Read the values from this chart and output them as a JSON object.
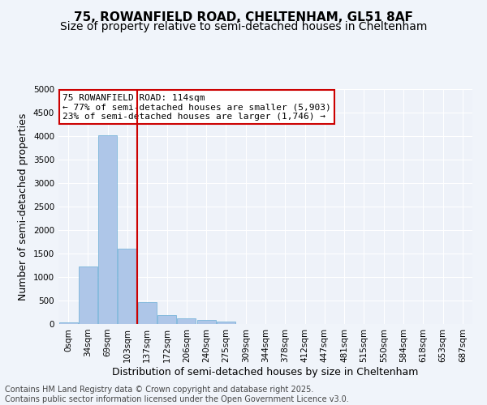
{
  "title_line1": "75, ROWANFIELD ROAD, CHELTENHAM, GL51 8AF",
  "title_line2": "Size of property relative to semi-detached houses in Cheltenham",
  "xlabel": "Distribution of semi-detached houses by size in Cheltenham",
  "ylabel": "Number of semi-detached properties",
  "annotation_title": "75 ROWANFIELD ROAD: 114sqm",
  "annotation_line1": "← 77% of semi-detached houses are smaller (5,903)",
  "annotation_line2": "23% of semi-detached houses are larger (1,746) →",
  "footer_line1": "Contains HM Land Registry data © Crown copyright and database right 2025.",
  "footer_line2": "Contains public sector information licensed under the Open Government Licence v3.0.",
  "bin_labels": [
    "0sqm",
    "34sqm",
    "69sqm",
    "103sqm",
    "137sqm",
    "172sqm",
    "206sqm",
    "240sqm",
    "275sqm",
    "309sqm",
    "344sqm",
    "378sqm",
    "412sqm",
    "447sqm",
    "481sqm",
    "515sqm",
    "550sqm",
    "584sqm",
    "618sqm",
    "653sqm",
    "687sqm"
  ],
  "bar_values": [
    30,
    1220,
    4020,
    1600,
    460,
    195,
    120,
    80,
    50,
    0,
    0,
    0,
    0,
    0,
    0,
    0,
    0,
    0,
    0,
    0,
    0
  ],
  "bar_color": "#aec6e8",
  "bar_edge_color": "#6aaed6",
  "property_line_color": "#cc0000",
  "property_line_x": 3.5,
  "ylim": [
    0,
    5000
  ],
  "yticks": [
    0,
    500,
    1000,
    1500,
    2000,
    2500,
    3000,
    3500,
    4000,
    4500,
    5000
  ],
  "background_color": "#f0f4fa",
  "plot_bg_color": "#eef2f9",
  "grid_color": "#ffffff",
  "annotation_box_color": "#ffffff",
  "annotation_box_edge": "#cc0000",
  "title_fontsize": 11,
  "subtitle_fontsize": 10,
  "axis_label_fontsize": 9,
  "tick_fontsize": 7.5,
  "annotation_fontsize": 8,
  "footer_fontsize": 7
}
